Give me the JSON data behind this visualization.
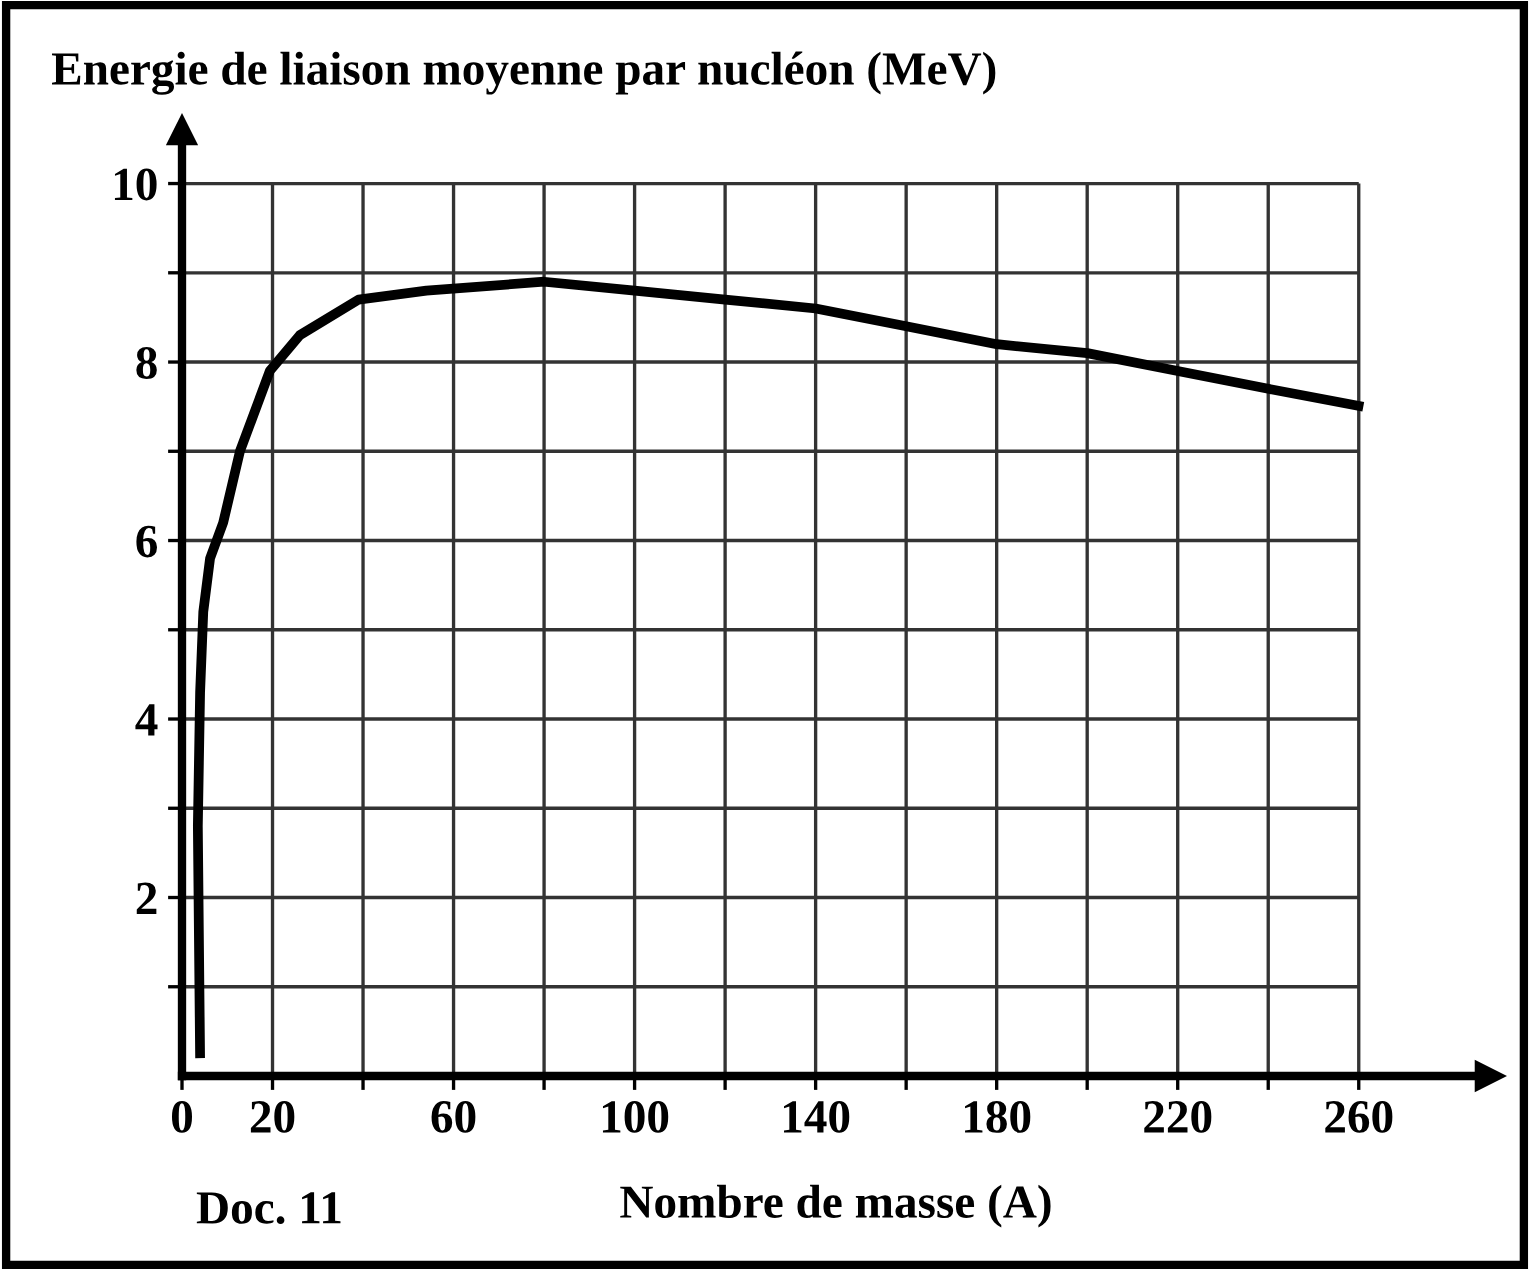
{
  "chart_data": {
    "type": "line",
    "ylabel": "Energie de liaison moyenne par nucléon (MeV)",
    "xlabel": "Nombre de masse (A)",
    "annotations": [
      "Doc. 11"
    ],
    "x": [
      4.0,
      3.5,
      4.0,
      4.7,
      6.2,
      9.1,
      12.8,
      19.4,
      26,
      39,
      54,
      80,
      100,
      120,
      140,
      160,
      180,
      200,
      220,
      240,
      261
    ],
    "series": [
      {
        "color": "#000000",
        "values": [
          0.2,
          2.8,
          4.3,
          5.2,
          5.8,
          6.2,
          7.0,
          7.9,
          8.3,
          8.7,
          8.8,
          8.9,
          8.8,
          8.7,
          8.6,
          8.4,
          8.2,
          8.1,
          7.9,
          7.7,
          7.5
        ]
      }
    ],
    "xlim": [
      0,
      289
    ],
    "ylim": [
      0,
      10.6
    ],
    "xticks": [
      0,
      20,
      {
        "value": 40,
        "label": null
      },
      60,
      {
        "value": 80,
        "label": null
      },
      100,
      {
        "value": 120,
        "label": null
      },
      140,
      {
        "value": 160,
        "label": null
      },
      180,
      {
        "value": 200,
        "label": null
      },
      220,
      {
        "value": 240,
        "label": null
      },
      260
    ],
    "yticks": [
      {
        "value": 1,
        "label": null
      },
      2,
      {
        "value": 3,
        "label": null
      },
      4,
      {
        "value": 5,
        "label": null
      },
      6,
      {
        "value": 7,
        "label": null
      },
      8,
      {
        "value": 9,
        "label": null
      },
      10
    ],
    "grid": true,
    "line_style": "solid",
    "marker": "none"
  }
}
